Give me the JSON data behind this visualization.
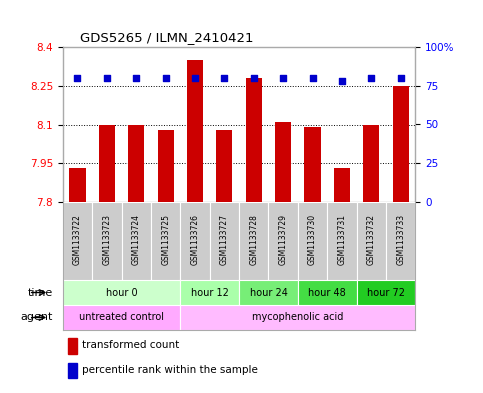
{
  "title": "GDS5265 / ILMN_2410421",
  "samples": [
    "GSM1133722",
    "GSM1133723",
    "GSM1133724",
    "GSM1133725",
    "GSM1133726",
    "GSM1133727",
    "GSM1133728",
    "GSM1133729",
    "GSM1133730",
    "GSM1133731",
    "GSM1133732",
    "GSM1133733"
  ],
  "bar_values": [
    7.93,
    8.1,
    8.1,
    8.08,
    8.35,
    8.08,
    8.28,
    8.11,
    8.09,
    7.93,
    8.1,
    8.25
  ],
  "percentile_values": [
    80,
    80,
    80,
    80,
    80,
    80,
    80,
    80,
    80,
    78,
    80,
    80
  ],
  "ylim": [
    7.8,
    8.4
  ],
  "yticks_left": [
    7.8,
    7.95,
    8.1,
    8.25,
    8.4
  ],
  "yticks_right": [
    0,
    25,
    50,
    75,
    100
  ],
  "bar_color": "#cc0000",
  "percentile_color": "#0000cc",
  "time_groups": [
    {
      "label": "hour 0",
      "start": 0,
      "end": 4,
      "color": "#ccffcc"
    },
    {
      "label": "hour 12",
      "start": 4,
      "end": 6,
      "color": "#aaffaa"
    },
    {
      "label": "hour 24",
      "start": 6,
      "end": 8,
      "color": "#77ee77"
    },
    {
      "label": "hour 48",
      "start": 8,
      "end": 10,
      "color": "#44dd44"
    },
    {
      "label": "hour 72",
      "start": 10,
      "end": 12,
      "color": "#22cc22"
    }
  ],
  "agent_groups": [
    {
      "label": "untreated control",
      "start": 0,
      "end": 4,
      "color": "#ffaaff"
    },
    {
      "label": "mycophenolic acid",
      "start": 4,
      "end": 12,
      "color": "#ffbbff"
    }
  ],
  "legend_bar_label": "transformed count",
  "legend_pct_label": "percentile rank within the sample",
  "sample_bg_color": "#cccccc",
  "border_color": "#aaaaaa"
}
